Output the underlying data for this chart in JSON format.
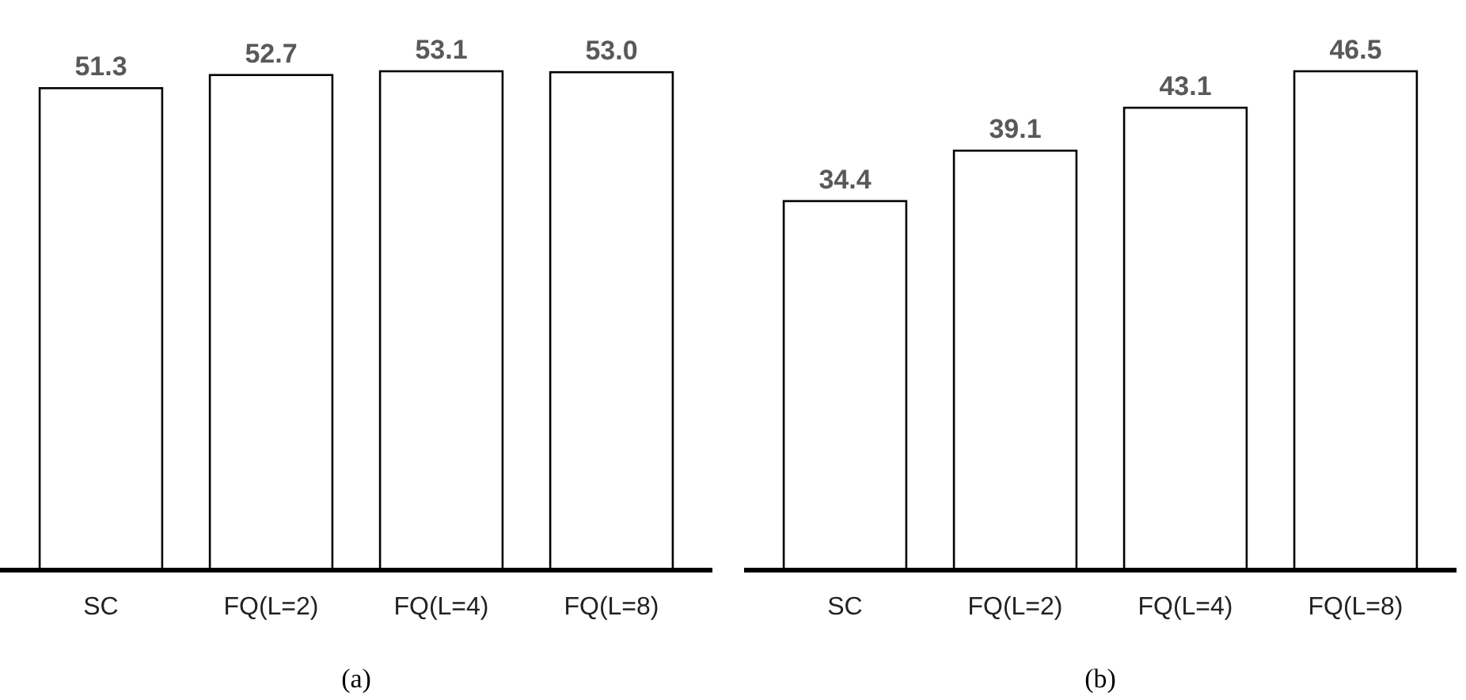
{
  "chart_data": [
    {
      "type": "bar",
      "relative": false,
      "categories": [
        "SC",
        "FQ(L=2)",
        "FQ(L=4)",
        "FQ(L=8)"
      ],
      "values": [
        51.3,
        52.7,
        53.1,
        53.0
      ],
      "value_labels": [
        "51.3",
        "52.7",
        "53.1",
        "53.0"
      ],
      "color": "#ffffff",
      "annotations": [
        "(a)"
      ]
    },
    {
      "type": "bar",
      "relative": false,
      "categories": [
        "SC",
        "FQ(L=2)",
        "FQ(L=4)",
        "FQ(L=8)"
      ],
      "values": [
        34.4,
        39.1,
        43.1,
        46.5
      ],
      "value_labels": [
        "34.4",
        "39.1",
        "43.1",
        "46.5"
      ],
      "color": "#ffffff",
      "annotations": [
        "(b)"
      ]
    }
  ]
}
